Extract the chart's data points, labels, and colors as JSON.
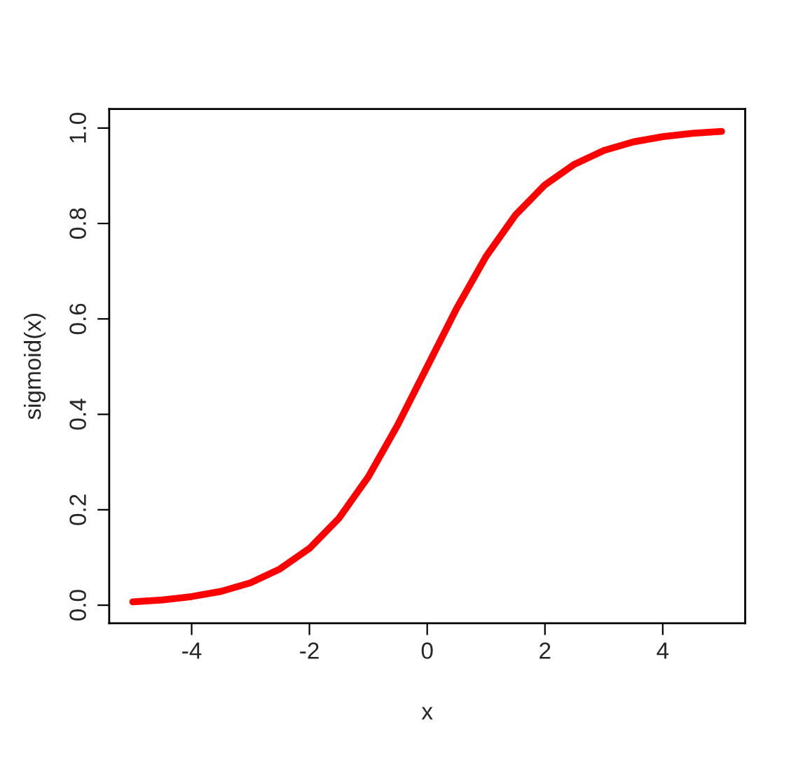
{
  "chart_data": {
    "type": "line",
    "xlabel": "x",
    "ylabel": "sigmoid(x)",
    "x": [
      -5,
      -4.5,
      -4,
      -3.5,
      -3,
      -2.5,
      -2,
      -1.5,
      -1,
      -0.5,
      0,
      0.5,
      1,
      1.5,
      2,
      2.5,
      3,
      3.5,
      4,
      4.5,
      5
    ],
    "series": [
      {
        "color": "#ff0000",
        "values": [
          0.007,
          0.011,
          0.018,
          0.029,
          0.047,
          0.076,
          0.119,
          0.182,
          0.269,
          0.378,
          0.5,
          0.622,
          0.731,
          0.818,
          0.881,
          0.924,
          0.953,
          0.971,
          0.982,
          0.989,
          0.993
        ]
      }
    ],
    "xlim": [
      -5.4,
      5.4
    ],
    "ylim": [
      -0.038,
      1.04
    ],
    "xticks": [
      {
        "value": -4,
        "label": "-4"
      },
      {
        "value": -2,
        "label": "-2"
      },
      0,
      2,
      4
    ],
    "yticks": [
      {
        "value": 0,
        "label": "0.0"
      },
      {
        "value": 0.2,
        "label": "0.2"
      },
      {
        "value": 0.4,
        "label": "0.4"
      },
      {
        "value": 0.6,
        "label": "0.6"
      },
      {
        "value": 0.8,
        "label": "0.8"
      },
      {
        "value": 1,
        "label": "1.0"
      }
    ],
    "grid": false,
    "legend": false,
    "marker": "none",
    "line_style": "solid"
  }
}
